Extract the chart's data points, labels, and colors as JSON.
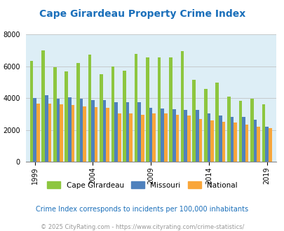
{
  "title": "Cape Girardeau Property Crime Index",
  "title_color": "#1a6fba",
  "plot_bg_color": "#ddeef6",
  "fig_bg_color": "#ffffff",
  "ylim": [
    0,
    8000
  ],
  "yticks": [
    0,
    2000,
    4000,
    6000,
    8000
  ],
  "years": [
    1999,
    2000,
    2001,
    2002,
    2003,
    2004,
    2005,
    2006,
    2007,
    2008,
    2009,
    2010,
    2011,
    2012,
    2013,
    2014,
    2015,
    2016,
    2017,
    2018,
    2019
  ],
  "cape_values": [
    6350,
    7000,
    5950,
    5700,
    6200,
    6750,
    5500,
    6000,
    5750,
    6800,
    6550,
    6550,
    6550,
    6950,
    5150,
    4600,
    5000,
    4100,
    3850,
    3950,
    3600
  ],
  "missouri_values": [
    4000,
    4200,
    3950,
    4050,
    3950,
    3900,
    3900,
    3750,
    3750,
    3750,
    3400,
    3350,
    3300,
    3250,
    3250,
    3050,
    2900,
    2800,
    2800,
    2650,
    2200
  ],
  "national_values": [
    3650,
    3650,
    3600,
    3550,
    3500,
    3450,
    3400,
    3050,
    3050,
    2950,
    3050,
    3050,
    2950,
    2900,
    2700,
    2600,
    2500,
    2450,
    2350,
    2200,
    2100
  ],
  "cape_color": "#8dc63f",
  "missouri_color": "#4f81bd",
  "national_color": "#f9a63a",
  "legend_labels": [
    "Cape Girardeau",
    "Missouri",
    "National"
  ],
  "footnote1": "Crime Index corresponds to incidents per 100,000 inhabitants",
  "footnote2": "© 2025 CityRating.com - https://www.cityrating.com/crime-statistics/",
  "footnote1_color": "#1a6fba",
  "footnote2_color": "#999999",
  "xtick_years": [
    1999,
    2004,
    2009,
    2014,
    2019
  ],
  "bar_width": 0.28,
  "grid_color": "#bbbbbb"
}
